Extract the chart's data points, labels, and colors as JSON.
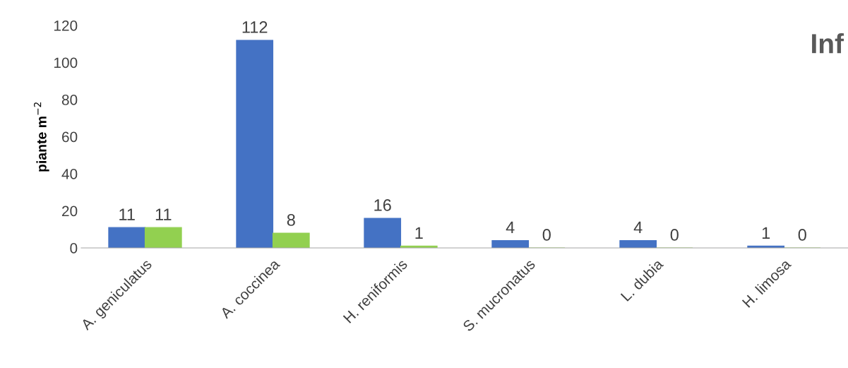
{
  "chart_data": {
    "type": "bar",
    "ylabel": "piante m$^{−2}$",
    "categories": [
      "A. geniculatus",
      "A. coccinea",
      "H. reniformis",
      "S. mucronatus",
      "L. dubia",
      "H. limosa"
    ],
    "series": [
      {
        "color": "#4472c4",
        "values": [
          11,
          112,
          16,
          4,
          4,
          1
        ]
      },
      {
        "color": "#92d050",
        "values": [
          11,
          8,
          1,
          0,
          0,
          0
        ]
      }
    ],
    "ylim": [
      0,
      120
    ],
    "yticks": [
      0,
      20,
      40,
      60,
      80,
      100,
      120
    ],
    "data_labels": true,
    "grid": false,
    "legend": false,
    "annotations": [
      "Inf"
    ]
  }
}
